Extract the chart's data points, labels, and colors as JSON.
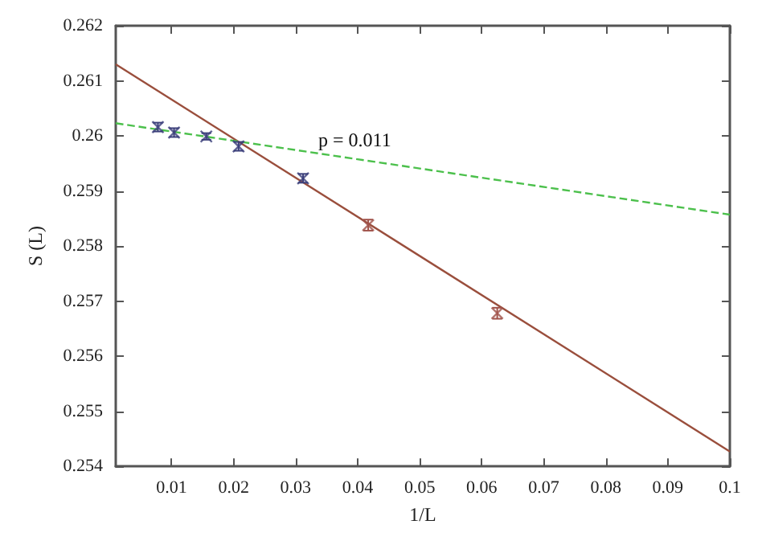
{
  "chart_data": {
    "type": "scatter",
    "xlabel": "1/L",
    "ylabel": "S (L)",
    "xlim": [
      0.001,
      0.1
    ],
    "ylim": [
      0.254,
      0.262
    ],
    "xticks": [
      0.01,
      0.02,
      0.03,
      0.04,
      0.05,
      0.06,
      0.07,
      0.08,
      0.09,
      0.1
    ],
    "yticks": [
      0.254,
      0.255,
      0.256,
      0.257,
      0.258,
      0.259,
      0.26,
      0.261,
      0.262
    ],
    "grid": false,
    "marker": "cross",
    "annotations": [
      "p = 0.011"
    ],
    "series": [
      {
        "color": "#3b3f7a",
        "x": [
          0.0078,
          0.0104,
          0.0156,
          0.0208,
          0.0312
        ],
        "values": [
          0.26016,
          0.26006,
          0.25999,
          0.25981,
          0.25923
        ],
        "errors": [
          8e-05,
          8e-05,
          6e-05,
          8e-05,
          8e-05
        ]
      },
      {
        "color": "#a0524a",
        "x": [
          0.0417,
          0.0625
        ],
        "values": [
          0.25838,
          0.25678
        ],
        "errors": [
          0.0001,
          0.0001
        ]
      },
      {
        "type": "line",
        "color": "#9a4e3c",
        "line_style": "solid",
        "marker": "none",
        "x": [
          0.001,
          0.1
        ],
        "values": [
          0.2613,
          0.25427
        ]
      },
      {
        "type": "line",
        "color": "#4cc04c",
        "line_style": "dashed",
        "marker": "none",
        "x": [
          0.001,
          0.1
        ],
        "values": [
          0.26023,
          0.25857
        ]
      }
    ]
  }
}
